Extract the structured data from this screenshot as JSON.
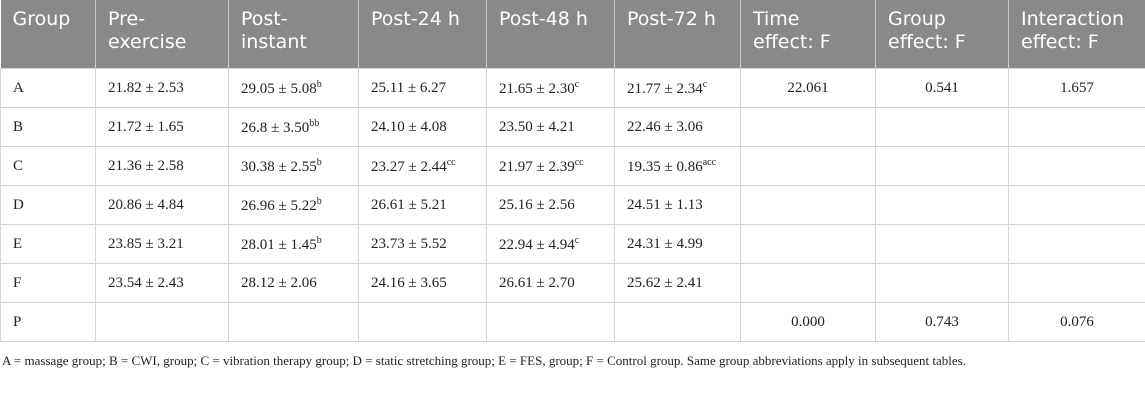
{
  "table": {
    "header": [
      "Group",
      "Pre-\nexercise",
      "Post-\ninstant",
      "Post-24 h",
      "Post-48 h",
      "Post-72 h",
      "Time\neffect: F",
      "Group\neffect: F",
      "Interaction\neffect: F"
    ],
    "rows": [
      {
        "group": "A",
        "cells": [
          {
            "text": "21.82 ± 2.53"
          },
          {
            "text": "29.05 ± 5.08",
            "sup": "b"
          },
          {
            "text": "25.11 ± 6.27"
          },
          {
            "text": "21.65 ± 2.30",
            "sup": "c"
          },
          {
            "text": "21.77 ± 2.34",
            "sup": "c"
          }
        ],
        "effects": [
          "22.061",
          "0.541",
          "1.657"
        ]
      },
      {
        "group": "B",
        "cells": [
          {
            "text": "21.72 ± 1.65"
          },
          {
            "text": "26.8 ± 3.50",
            "sup": "bb"
          },
          {
            "text": "24.10 ± 4.08"
          },
          {
            "text": "23.50 ± 4.21"
          },
          {
            "text": "22.46 ± 3.06"
          }
        ]
      },
      {
        "group": "C",
        "cells": [
          {
            "text": "21.36 ± 2.58"
          },
          {
            "text": "30.38 ± 2.55",
            "sup": "b"
          },
          {
            "text": "23.27 ± 2.44",
            "sup": "cc"
          },
          {
            "text": "21.97 ± 2.39",
            "sup": "cc"
          },
          {
            "text": "19.35 ± 0.86",
            "sup": "acc"
          }
        ]
      },
      {
        "group": "D",
        "cells": [
          {
            "text": "20.86 ± 4.84"
          },
          {
            "text": "26.96 ± 5.22",
            "sup": "b"
          },
          {
            "text": "26.61 ± 5.21"
          },
          {
            "text": "25.16 ± 2.56"
          },
          {
            "text": "24.51 ± 1.13"
          }
        ]
      },
      {
        "group": "E",
        "cells": [
          {
            "text": "23.85 ± 3.21"
          },
          {
            "text": "28.01 ± 1.45",
            "sup": "b"
          },
          {
            "text": "23.73 ± 5.52"
          },
          {
            "text": "22.94 ± 4.94",
            "sup": "c"
          },
          {
            "text": "24.31 ± 4.99"
          }
        ]
      },
      {
        "group": "F",
        "cells": [
          {
            "text": "23.54 ± 2.43"
          },
          {
            "text": "28.12 ± 2.06"
          },
          {
            "text": "24.16 ± 3.65"
          },
          {
            "text": "26.61 ± 2.70"
          },
          {
            "text": "25.62 ± 2.41"
          }
        ]
      },
      {
        "group": "P",
        "effects": [
          "0.000",
          "0.743",
          "0.076"
        ]
      }
    ],
    "footnote": "A = massage group; B = CWI, group; C = vibration therapy group; D = static stretching group; E = FES, group; F = Control group. Same group abbreviations apply in subsequent tables."
  }
}
